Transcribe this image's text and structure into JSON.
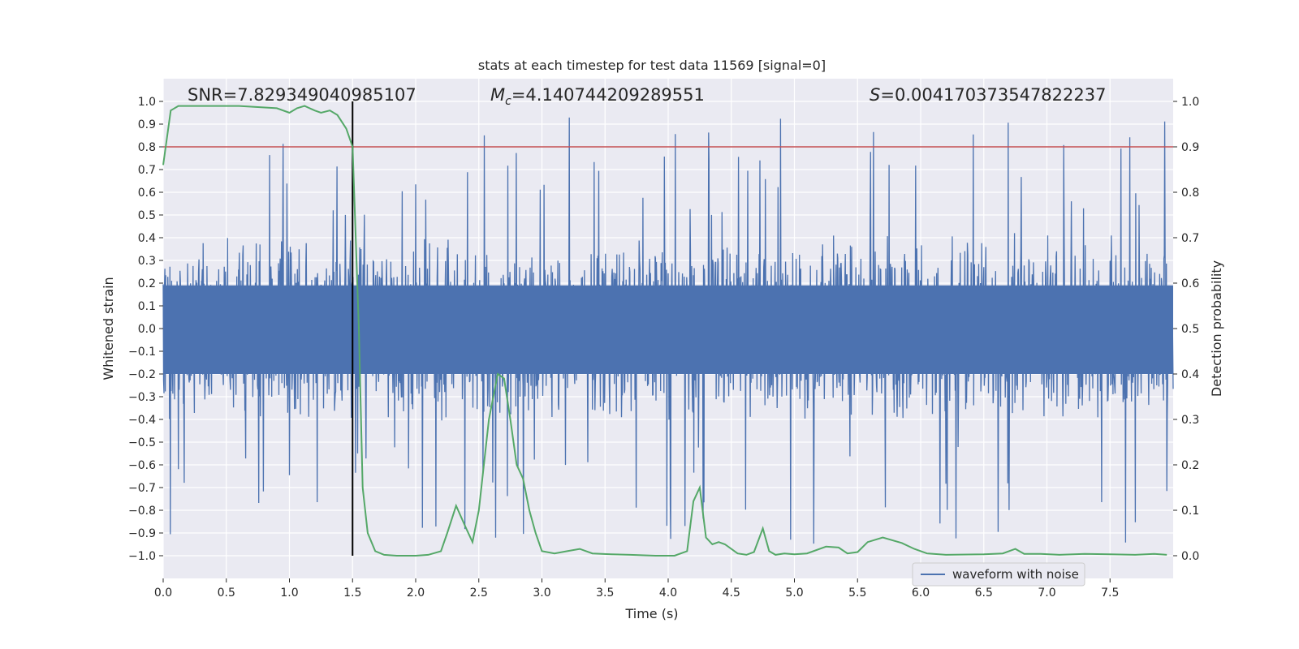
{
  "colors": {
    "background": "#eaeaf2",
    "grid": "#ffffff",
    "waveform": "#4c72b0",
    "probability": "#55a868",
    "threshold": "#c44e52",
    "marker": "#000000",
    "text": "#262626"
  },
  "chart_data": {
    "type": "line",
    "title": "stats at each timestep for test data 11569 [signal=0]",
    "xlabel": "Time (s)",
    "ylabel": "Whitened strain",
    "y2label": "Detection probability",
    "xlim": [
      0.0,
      8.0
    ],
    "ylim": [
      -1.1,
      1.1
    ],
    "y2lim": [
      -0.05,
      1.05
    ],
    "xticks": [
      0.0,
      0.5,
      1.0,
      1.5,
      2.0,
      2.5,
      3.0,
      3.5,
      4.0,
      4.5,
      5.0,
      5.5,
      6.0,
      6.5,
      7.0,
      7.5
    ],
    "xtick_labels": [
      "0.0",
      "0.5",
      "1.0",
      "1.5",
      "2.0",
      "2.5",
      "3.0",
      "3.5",
      "4.0",
      "4.5",
      "5.0",
      "5.5",
      "6.0",
      "6.5",
      "7.0",
      "7.5"
    ],
    "yticks": [
      -1.0,
      -0.9,
      -0.8,
      -0.7,
      -0.6,
      -0.5,
      -0.4,
      -0.3,
      -0.2,
      -0.1,
      0.0,
      0.1,
      0.2,
      0.3,
      0.4,
      0.5,
      0.6,
      0.7,
      0.8,
      0.9,
      1.0
    ],
    "ytick_labels": [
      "−1.0",
      "−0.9",
      "−0.8",
      "−0.7",
      "−0.6",
      "−0.5",
      "−0.4",
      "−0.3",
      "−0.2",
      "−0.1",
      "0.0",
      "0.1",
      "0.2",
      "0.3",
      "0.4",
      "0.5",
      "0.6",
      "0.7",
      "0.8",
      "0.9",
      "1.0"
    ],
    "y2ticks": [
      0.0,
      0.1,
      0.2,
      0.3,
      0.4,
      0.5,
      0.6,
      0.7,
      0.8,
      0.9,
      1.0
    ],
    "y2tick_labels": [
      "0.0",
      "0.1",
      "0.2",
      "0.3",
      "0.4",
      "0.5",
      "0.6",
      "0.7",
      "0.8",
      "0.9",
      "1.0"
    ],
    "annotations": {
      "snr": "SNR=7.829349040985107",
      "mc_symbol": "M",
      "mc_sub": "c",
      "mc_value": "=4.140744209289551",
      "s_symbol": "S",
      "s_value": "=0.004170373547822237"
    },
    "legend": {
      "label": "waveform with noise",
      "placement": "lower-right"
    },
    "threshold": {
      "y2": 0.9
    },
    "vline": {
      "x": 1.5,
      "ymin": -1.0,
      "ymax": 1.0
    },
    "waveform_envelope": {
      "description_of_series": "waveform with noise",
      "typical_amplitude": 0.3,
      "max_amplitude": 0.98,
      "min_amplitude": -1.0
    },
    "probability_series": {
      "name": "detection probability",
      "x": [
        0.0,
        0.06,
        0.12,
        0.3,
        0.6,
        0.9,
        1.0,
        1.06,
        1.12,
        1.2,
        1.25,
        1.32,
        1.38,
        1.45,
        1.5,
        1.55,
        1.58,
        1.62,
        1.68,
        1.75,
        1.85,
        2.0,
        2.1,
        2.2,
        2.25,
        2.32,
        2.4,
        2.45,
        2.5,
        2.58,
        2.65,
        2.7,
        2.75,
        2.8,
        2.85,
        2.9,
        2.95,
        3.0,
        3.1,
        3.2,
        3.3,
        3.4,
        3.55,
        3.7,
        3.9,
        4.05,
        4.15,
        4.2,
        4.25,
        4.3,
        4.35,
        4.4,
        4.45,
        4.55,
        4.62,
        4.68,
        4.75,
        4.8,
        4.85,
        4.92,
        5.0,
        5.1,
        5.25,
        5.35,
        5.42,
        5.5,
        5.58,
        5.7,
        5.85,
        5.95,
        6.05,
        6.2,
        6.5,
        6.65,
        6.75,
        6.82,
        6.95,
        7.1,
        7.3,
        7.5,
        7.7,
        7.85,
        7.95
      ],
      "y": [
        0.86,
        0.98,
        0.99,
        0.99,
        0.99,
        0.985,
        0.975,
        0.985,
        0.99,
        0.98,
        0.975,
        0.98,
        0.97,
        0.94,
        0.9,
        0.5,
        0.15,
        0.05,
        0.01,
        0.002,
        0.0,
        0.0,
        0.002,
        0.01,
        0.05,
        0.11,
        0.06,
        0.03,
        0.1,
        0.3,
        0.4,
        0.39,
        0.3,
        0.2,
        0.17,
        0.1,
        0.05,
        0.01,
        0.005,
        0.01,
        0.015,
        0.005,
        0.003,
        0.002,
        0.0,
        0.0,
        0.01,
        0.12,
        0.15,
        0.04,
        0.025,
        0.03,
        0.025,
        0.005,
        0.002,
        0.008,
        0.06,
        0.01,
        0.002,
        0.005,
        0.003,
        0.005,
        0.02,
        0.018,
        0.005,
        0.008,
        0.03,
        0.04,
        0.028,
        0.015,
        0.005,
        0.002,
        0.003,
        0.005,
        0.015,
        0.004,
        0.004,
        0.002,
        0.004,
        0.003,
        0.002,
        0.004,
        0.002
      ]
    }
  }
}
